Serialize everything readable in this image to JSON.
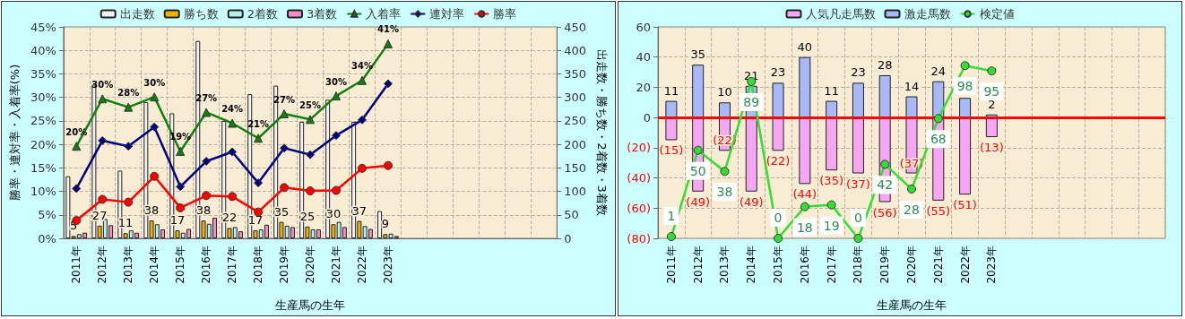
{
  "chart_data": [
    {
      "type": "bar",
      "xlabel": "生産馬の生年",
      "ylabel": "勝率・連対率・入着率(%)",
      "y2label": "出走数・勝ち数・2着数・3着数",
      "categories": [
        "2011年",
        "2012年",
        "2013年",
        "2014年",
        "2015年",
        "2016年",
        "2017年",
        "2018年",
        "2019年",
        "2020年",
        "2021年",
        "2022年",
        "2023年",
        null,
        null,
        null,
        null,
        null,
        null
      ],
      "ylim": [
        0,
        45
      ],
      "yticks": [
        {
          "value": 0,
          "label": "0%"
        },
        {
          "value": 5,
          "label": "5%"
        },
        {
          "value": 10,
          "label": "10%"
        },
        {
          "value": 15,
          "label": "15%"
        },
        {
          "value": 20,
          "label": "20%"
        },
        {
          "value": 25,
          "label": "25%"
        },
        {
          "value": 30,
          "label": "30%"
        },
        {
          "value": 35,
          "label": "35%"
        },
        {
          "value": 40,
          "label": "40%"
        },
        {
          "value": 45,
          "label": "45%"
        }
      ],
      "y2lim": [
        0,
        450
      ],
      "y2ticks": [
        0,
        50,
        100,
        150,
        200,
        250,
        300,
        350,
        400,
        450
      ],
      "grid": true,
      "legend": "top",
      "series": [
        {
          "name": "出走数",
          "axis": "y2",
          "color": "#f2f2f2",
          "values": [
            132,
            327,
            144,
            290,
            266,
            420,
            250,
            307,
            325,
            248,
            295,
            248,
            58,
            null,
            null,
            null,
            null,
            null,
            null
          ]
        },
        {
          "name": "勝ち数",
          "axis": "y2",
          "color": "#f0b400",
          "values": [
            5,
            27,
            11,
            38,
            17,
            38,
            22,
            17,
            35,
            25,
            30,
            37,
            9,
            null,
            null,
            null,
            null,
            null,
            null
          ],
          "value_labels": [
            "5",
            "27",
            "11",
            "38",
            "17",
            "38",
            "22",
            "17",
            "35",
            "25",
            "30",
            "37",
            "9",
            null,
            null,
            null,
            null,
            null,
            null
          ]
        },
        {
          "name": "2着数",
          "axis": "y2",
          "color": "#b4f0f0",
          "values": [
            9,
            41,
            17,
            30,
            12,
            31,
            24,
            19,
            27,
            19,
            35,
            26,
            10,
            null,
            null,
            null,
            null,
            null,
            null
          ]
        },
        {
          "name": "3着数",
          "axis": "y2",
          "color": "#f090c8",
          "values": [
            12,
            28,
            12,
            19,
            20,
            44,
            15,
            29,
            24,
            19,
            24,
            20,
            5,
            null,
            null,
            null,
            null,
            null,
            null
          ]
        },
        {
          "name": "入着率",
          "type": "line",
          "axis": "y",
          "color": "#108010",
          "marker": "triangle",
          "values": [
            19.6,
            29.7,
            27.9,
            30.1,
            18.5,
            26.8,
            24.5,
            21.3,
            26.5,
            25.3,
            30.3,
            33.6,
            41.4,
            null,
            null,
            null,
            null,
            null,
            null
          ],
          "value_labels": [
            "20%",
            "30%",
            "28%",
            "30%",
            "19%",
            "27%",
            "24%",
            "21%",
            "27%",
            "25%",
            "30%",
            "34%",
            "41%",
            null,
            null,
            null,
            null,
            null,
            null
          ]
        },
        {
          "name": "連対率",
          "type": "line",
          "axis": "y",
          "color": "#000080",
          "marker": "diamond",
          "values": [
            10.6,
            20.8,
            19.6,
            23.7,
            11.0,
            16.4,
            18.4,
            11.8,
            19.2,
            17.8,
            21.9,
            25.2,
            32.9,
            null,
            null,
            null,
            null,
            null,
            null
          ]
        },
        {
          "name": "勝率",
          "type": "line",
          "axis": "y",
          "color": "#ff0000",
          "marker": "circle",
          "values": [
            3.8,
            8.3,
            7.7,
            13.2,
            6.5,
            9.1,
            8.9,
            5.6,
            10.8,
            10.1,
            10.2,
            14.9,
            15.5,
            null,
            null,
            null,
            null,
            null,
            null
          ]
        }
      ]
    },
    {
      "type": "bar",
      "xlabel": "生産馬の生年",
      "stacked": true,
      "categories": [
        "2011年",
        "2012年",
        "2013年",
        "2014年",
        "2015年",
        "2016年",
        "2017年",
        "2018年",
        "2019年",
        "2020年",
        "2021年",
        "2022年",
        "2023年",
        null,
        null,
        null,
        null,
        null,
        null
      ],
      "ylim": [
        -80,
        60
      ],
      "yticks": [
        {
          "value": -80,
          "label": "(80)"
        },
        {
          "value": -60,
          "label": "(60)"
        },
        {
          "value": -40,
          "label": "(40)"
        },
        {
          "value": -20,
          "label": "(20)"
        },
        0,
        20,
        40,
        60
      ],
      "y2lim": [
        0,
        120
      ],
      "tick_labels": "xy",
      "grid": true,
      "legend": "top",
      "ref_lines": [
        {
          "axis": "y",
          "value": 0,
          "color": "#ff0000"
        }
      ],
      "series": [
        {
          "name": "人気凡走馬数",
          "axis": "y",
          "color": "#f4a8f4",
          "values": [
            -15,
            -49,
            -22,
            -49,
            -22,
            -44,
            -35,
            -37,
            -56,
            -37,
            -55,
            -51,
            -13,
            null,
            null,
            null,
            null,
            null,
            null
          ],
          "value_labels": [
            "(15)",
            "(49)",
            "(22)",
            "(49)",
            "(22)",
            "(44)",
            "(35)",
            "(37)",
            "(56)",
            "(37)",
            "(55)",
            "(51)",
            "(13)",
            null,
            null,
            null,
            null,
            null,
            null
          ]
        },
        {
          "name": "激走馬数",
          "axis": "y",
          "color": "#a8b8f8",
          "values": [
            11,
            35,
            10,
            21,
            23,
            40,
            11,
            23,
            28,
            14,
            24,
            13,
            2,
            null,
            null,
            null,
            null,
            null,
            null
          ],
          "value_labels": [
            "11",
            "35",
            "10",
            "21",
            "23",
            "40",
            "11",
            "23",
            "28",
            "14",
            "24",
            null,
            "2",
            null,
            null,
            null,
            null,
            null,
            null
          ]
        },
        {
          "name": "検定値",
          "type": "line",
          "axis": "y2",
          "color": "#33dd33",
          "marker": "circle",
          "values": [
            1,
            50,
            38,
            89,
            0,
            18,
            19,
            0,
            42,
            28,
            68,
            98,
            95,
            null,
            null,
            null,
            null,
            null,
            null
          ],
          "value_labels": [
            "1",
            "50",
            "38",
            "89",
            "0",
            "18",
            "19",
            "0",
            "42",
            "28",
            "68",
            "98",
            "95",
            null,
            null,
            null,
            null,
            null,
            null
          ]
        }
      ]
    }
  ]
}
